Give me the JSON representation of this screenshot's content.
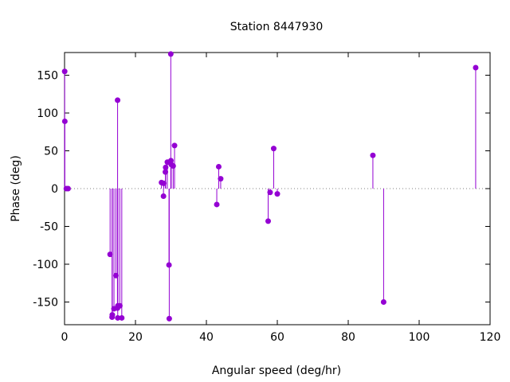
{
  "chart_data": {
    "type": "stem",
    "title": "Station 8447930",
    "xlabel": "Angular speed (deg/hr)",
    "ylabel": "Phase (deg)",
    "xlim": [
      0,
      120
    ],
    "ylim": [
      -180,
      180
    ],
    "xticks": [
      0,
      20,
      40,
      60,
      80,
      100,
      120
    ],
    "yticks": [
      -150,
      -100,
      -50,
      0,
      50,
      100,
      150
    ],
    "grid": false,
    "zero_line": true,
    "color": "#9400d3",
    "points": [
      {
        "x": 0.04,
        "y": 155
      },
      {
        "x": 0.08,
        "y": 89
      },
      {
        "x": 0.5,
        "y": 0
      },
      {
        "x": 1.0,
        "y": 0
      },
      {
        "x": 12.85,
        "y": -87
      },
      {
        "x": 13.4,
        "y": -170
      },
      {
        "x": 13.47,
        "y": -167
      },
      {
        "x": 13.94,
        "y": -159
      },
      {
        "x": 14.49,
        "y": -115
      },
      {
        "x": 14.92,
        "y": -158
      },
      {
        "x": 14.96,
        "y": 117
      },
      {
        "x": 15.0,
        "y": -171
      },
      {
        "x": 15.04,
        "y": -155
      },
      {
        "x": 15.59,
        "y": -155
      },
      {
        "x": 16.14,
        "y": -171
      },
      {
        "x": 27.34,
        "y": 8
      },
      {
        "x": 27.9,
        "y": -10
      },
      {
        "x": 27.97,
        "y": 7
      },
      {
        "x": 28.44,
        "y": 22
      },
      {
        "x": 28.51,
        "y": 28
      },
      {
        "x": 28.99,
        "y": 35
      },
      {
        "x": 29.46,
        "y": -101
      },
      {
        "x": 29.53,
        "y": -172
      },
      {
        "x": 29.96,
        "y": 178
      },
      {
        "x": 30.0,
        "y": 37
      },
      {
        "x": 30.08,
        "y": 32
      },
      {
        "x": 30.63,
        "y": 30
      },
      {
        "x": 31.02,
        "y": 57
      },
      {
        "x": 42.93,
        "y": -21
      },
      {
        "x": 43.48,
        "y": 29
      },
      {
        "x": 44.03,
        "y": 13
      },
      {
        "x": 57.42,
        "y": -43
      },
      {
        "x": 57.97,
        "y": -5
      },
      {
        "x": 58.98,
        "y": 53
      },
      {
        "x": 60.0,
        "y": -7
      },
      {
        "x": 86.95,
        "y": 44
      },
      {
        "x": 89.98,
        "y": -150
      },
      {
        "x": 115.94,
        "y": 160
      }
    ]
  }
}
